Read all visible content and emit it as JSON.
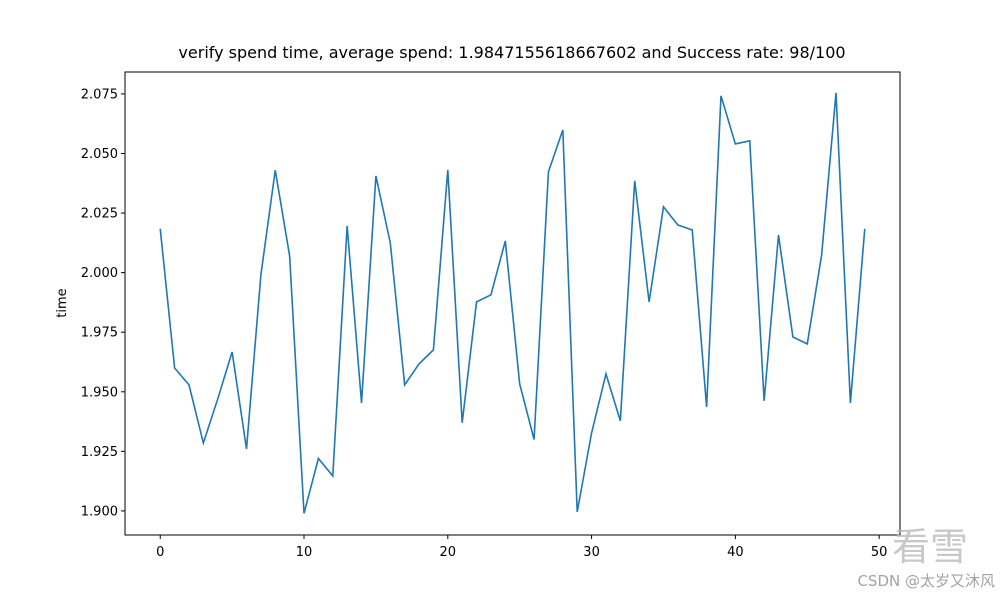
{
  "chart_data": {
    "type": "line",
    "title": "verify spend time, average spend: 1.9847155618667602 and Success rate: 98/100",
    "ylabel": "time",
    "x": [
      0,
      1,
      2,
      3,
      4,
      5,
      6,
      7,
      8,
      9,
      10,
      11,
      12,
      13,
      14,
      15,
      16,
      17,
      18,
      19,
      20,
      21,
      22,
      23,
      24,
      25,
      26,
      27,
      28,
      29,
      30,
      31,
      32,
      33,
      34,
      35,
      36,
      37,
      38,
      39,
      40,
      41,
      42,
      43,
      44,
      45,
      46,
      47,
      48,
      49
    ],
    "series": [
      {
        "color": "#1f77b4",
        "values": [
          2.0184,
          1.96,
          1.9529,
          1.9285,
          1.947,
          1.9667,
          1.926,
          1.999,
          2.043,
          2.007,
          1.899,
          1.922,
          1.9147,
          2.0196,
          1.9453,
          2.0406,
          2.0125,
          1.9529,
          1.9617,
          1.9676,
          2.0431,
          1.937,
          1.9877,
          1.9907,
          2.0133,
          1.9533,
          1.93,
          2.0423,
          2.0599,
          1.8996,
          1.9327,
          1.9575,
          1.9378,
          2.0385,
          1.9877,
          2.0276,
          2.02,
          2.0179,
          1.9436,
          2.0742,
          2.054,
          2.0553,
          1.9462,
          2.0158,
          1.973,
          1.9701,
          2.0074,
          2.0754,
          1.9453,
          2.0184
        ]
      }
    ],
    "xlim": [
      -2.45,
      51.45
    ],
    "ylim": [
      1.8899,
      2.0842
    ],
    "xticks": [
      0,
      10,
      20,
      30,
      40,
      50
    ],
    "yticks": [
      {
        "value": 1.9,
        "label": "1.900"
      },
      {
        "value": 1.925,
        "label": "1.925"
      },
      {
        "value": 1.95,
        "label": "1.950"
      },
      {
        "value": 1.975,
        "label": "1.975"
      },
      {
        "value": 2.0,
        "label": "2.000"
      },
      {
        "value": 2.025,
        "label": "2.025"
      },
      {
        "value": 2.05,
        "label": "2.050"
      },
      {
        "value": 2.075,
        "label": "2.075"
      }
    ],
    "grid": false
  },
  "watermark": {
    "logo": "看雪",
    "credit": "CSDN @太岁又沐风"
  }
}
